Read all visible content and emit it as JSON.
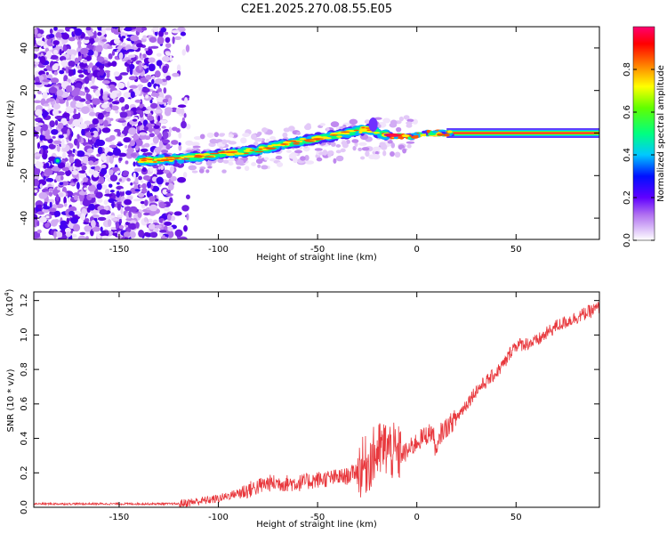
{
  "title": "C2E1.2025.270.08.55.E05",
  "chart_data": [
    {
      "type": "heatmap",
      "xlabel": "Height of straight line (km)",
      "ylabel": "Frequency (Hz)",
      "xlim": [
        -193,
        92
      ],
      "ylim": [
        -50,
        50
      ],
      "xticks": [
        -150,
        -100,
        -50,
        0,
        50
      ],
      "yticks": [
        -40,
        -20,
        0,
        20,
        40
      ],
      "colorbar": {
        "label": "Normalized spectral amplitude",
        "range": [
          0,
          1
        ],
        "ticks": [
          "0.0",
          "0.2",
          "0.4",
          "0.6",
          "0.8"
        ],
        "colors": [
          "#ffffff",
          "#8a2be2",
          "#0000ff",
          "#00ffff",
          "#00ff00",
          "#ffff00",
          "#ff8000",
          "#ff0000",
          "#ff0080"
        ]
      },
      "ridge": {
        "description_points": [
          [
            -140,
            -13
          ],
          [
            -120,
            -12
          ],
          [
            -100,
            -10
          ],
          [
            -80,
            -8
          ],
          [
            -60,
            -4
          ],
          [
            -40,
            -1
          ],
          [
            -25,
            2
          ],
          [
            -15,
            -1
          ],
          [
            -5,
            -2
          ],
          [
            5,
            0
          ],
          [
            15,
            0
          ],
          [
            92,
            0
          ]
        ]
      }
    },
    {
      "type": "line",
      "xlabel": "Height of straight line (km)",
      "ylabel": "SNR (10 * v/v)",
      "yscale_label": "(x10",
      "yscale_exp": "4",
      "yscale_close": ")",
      "xlim": [
        -193,
        92
      ],
      "ylim": [
        0,
        1.25
      ],
      "xticks": [
        -150,
        -100,
        -50,
        0,
        50
      ],
      "yticks": [
        "0.0",
        "0.2",
        "0.4",
        "0.6",
        "0.8",
        "1.0",
        "1.2"
      ],
      "series": [
        {
          "name": "SNR",
          "color": "#e8383d",
          "anchors": [
            [
              -193,
              0.02
            ],
            [
              -120,
              0.02
            ],
            [
              -100,
              0.05
            ],
            [
              -85,
              0.1
            ],
            [
              -75,
              0.14
            ],
            [
              -60,
              0.14
            ],
            [
              -50,
              0.16
            ],
            [
              -35,
              0.18
            ],
            [
              -25,
              0.25
            ],
            [
              -20,
              0.32
            ],
            [
              -15,
              0.35
            ],
            [
              -10,
              0.3
            ],
            [
              -5,
              0.32
            ],
            [
              0,
              0.38
            ],
            [
              5,
              0.42
            ],
            [
              8,
              0.44
            ],
            [
              10,
              0.3
            ],
            [
              12,
              0.43
            ],
            [
              20,
              0.52
            ],
            [
              30,
              0.68
            ],
            [
              40,
              0.78
            ],
            [
              45,
              0.85
            ],
            [
              48,
              0.92
            ],
            [
              50,
              0.94
            ],
            [
              60,
              0.96
            ],
            [
              70,
              1.05
            ],
            [
              80,
              1.1
            ],
            [
              92,
              1.16
            ]
          ]
        }
      ]
    }
  ]
}
